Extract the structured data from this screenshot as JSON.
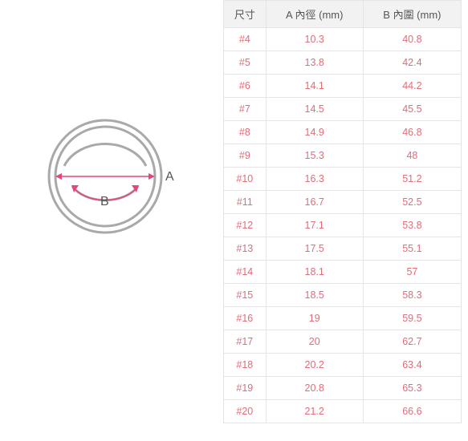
{
  "diagram": {
    "outer_stroke": "#a9a9a9",
    "inner_stroke": "#a9a9a9",
    "inner_band_stroke": "#a9a9a9",
    "line_color": "#e6447a",
    "label_color": "#555555",
    "label_A": "A",
    "label_B": "B",
    "stroke_width_outer": 3,
    "stroke_width_inner": 3
  },
  "table": {
    "header_bg": "#f2f2f2",
    "header_text_color": "#555555",
    "border_color": "#e5e5e5",
    "cell_text_color": "#e06d78",
    "columns": [
      "尺寸",
      "A 內徑 (mm)",
      "B 內圍 (mm)"
    ],
    "rows": [
      [
        "#4",
        "10.3",
        "40.8"
      ],
      [
        "#5",
        "13.8",
        "42.4"
      ],
      [
        "#6",
        "14.1",
        "44.2"
      ],
      [
        "#7",
        "14.5",
        "45.5"
      ],
      [
        "#8",
        "14.9",
        "46.8"
      ],
      [
        "#9",
        "15.3",
        "48"
      ],
      [
        "#10",
        "16.3",
        "51.2"
      ],
      [
        "#11",
        "16.7",
        "52.5"
      ],
      [
        "#12",
        "17.1",
        "53.8"
      ],
      [
        "#13",
        "17.5",
        "55.1"
      ],
      [
        "#14",
        "18.1",
        "57"
      ],
      [
        "#15",
        "18.5",
        "58.3"
      ],
      [
        "#16",
        "19",
        "59.5"
      ],
      [
        "#17",
        "20",
        "62.7"
      ],
      [
        "#18",
        "20.2",
        "63.4"
      ],
      [
        "#19",
        "20.8",
        "65.3"
      ],
      [
        "#20",
        "21.2",
        "66.6"
      ]
    ]
  }
}
